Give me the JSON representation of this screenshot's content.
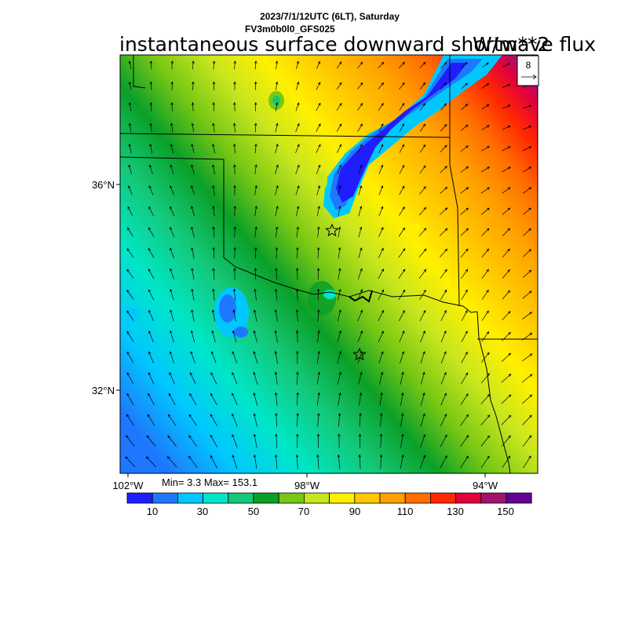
{
  "header": {
    "datetime": "2023/7/1/12UTC (6LT), Saturday",
    "model": "FV3m0b0l0_GFS025",
    "title": "instantaneous surface downward shortwave flux",
    "units": "W/m**2"
  },
  "map": {
    "lat_labels": [
      "36°N",
      "32°N"
    ],
    "lon_labels": [
      "102°W",
      "98°W",
      "94°W"
    ],
    "stats": "Min= 3.3 Max= 153.1",
    "reference_vector": "8",
    "markers": [
      "star",
      "star"
    ]
  },
  "colorbar": {
    "colors": [
      "#1e1eff",
      "#1e78ff",
      "#00c8ff",
      "#00e6c8",
      "#14c878",
      "#0aa028",
      "#78c814",
      "#c8e61e",
      "#fff000",
      "#ffc800",
      "#ffa000",
      "#ff6e00",
      "#ff2800",
      "#e1003c",
      "#a0146e",
      "#640096"
    ],
    "labels": [
      "10",
      "30",
      "50",
      "70",
      "90",
      "110",
      "130",
      "150"
    ]
  }
}
